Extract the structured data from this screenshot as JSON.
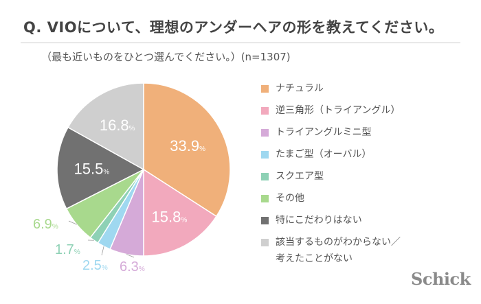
{
  "header": {
    "title": "Q. VIOについて、理想のアンダーヘアの形を教えてください。",
    "subtitle": "（最も近いものをひとつ選んでください。）(n=1307)"
  },
  "logo": "Schick",
  "chart_data": {
    "type": "pie",
    "unit": "%",
    "slices": [
      {
        "label": "ナチュラル",
        "value": 33.9,
        "color": "#f0b07a"
      },
      {
        "label": "逆三角形（トライアングル）",
        "value": 15.8,
        "color": "#f2a9bd"
      },
      {
        "label": "トライアングルミニ型",
        "value": 6.3,
        "color": "#d5aad8"
      },
      {
        "label": "たまご型（オーバル）",
        "value": 2.5,
        "color": "#9fd8f0"
      },
      {
        "label": "スクエア型",
        "value": 1.7,
        "color": "#8ed1b5"
      },
      {
        "label": "その他",
        "value": 6.9,
        "color": "#a8d98d"
      },
      {
        "label": "特にこだわりはない",
        "value": 15.5,
        "color": "#717171"
      },
      {
        "label": "該当するものがわからない／\n考えたことがない",
        "value": 16.8,
        "color": "#cfcfcf"
      }
    ]
  }
}
